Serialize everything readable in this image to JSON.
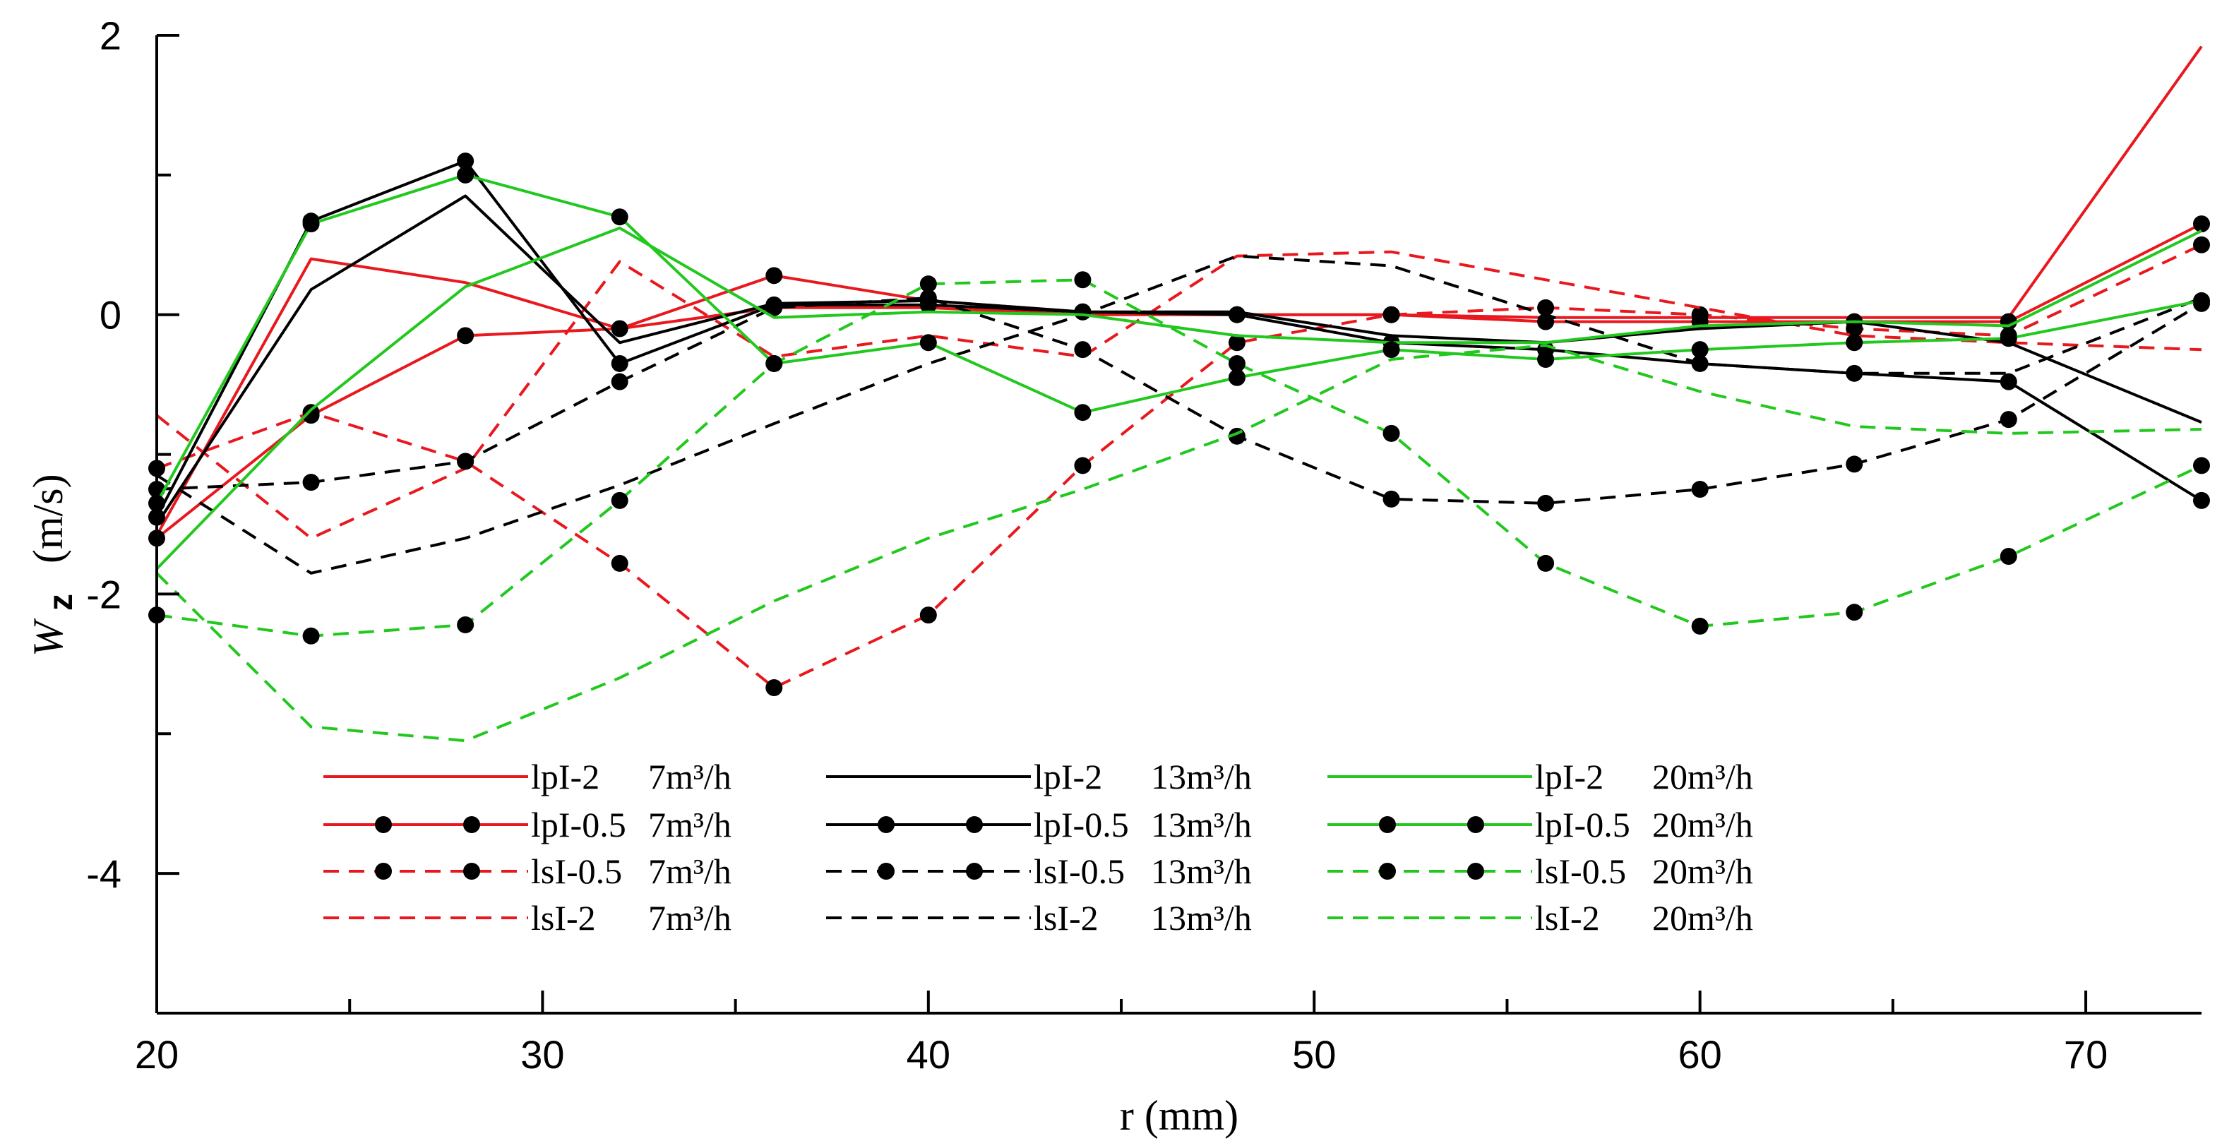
{
  "chart_data": {
    "type": "line",
    "title": "",
    "xlabel": "r  (mm)",
    "ylabel_symbol": "W",
    "ylabel_subscript": "z",
    "ylabel_unit": "(m/s)",
    "xlim": [
      20,
      73
    ],
    "ylim": [
      -5,
      2
    ],
    "x_ticks": [
      20,
      30,
      40,
      50,
      60,
      70
    ],
    "y_ticks": [
      -4,
      -2,
      0,
      2
    ],
    "x": [
      20,
      24,
      28,
      32,
      36,
      40,
      44,
      48,
      52,
      56,
      60,
      64,
      68,
      73
    ],
    "grid": false,
    "legend_position": "bottom-center",
    "colors": {
      "red": "#e8181e",
      "black": "#000000",
      "green": "#22c81e"
    },
    "series": [
      {
        "name": "lpI-2",
        "flow": "7m³/h",
        "color": "red",
        "dash": "solid",
        "markers": false,
        "values": [
          -1.58,
          0.4,
          0.23,
          -0.1,
          0.05,
          0.05,
          0.0,
          0.0,
          0.0,
          -0.02,
          -0.02,
          -0.02,
          -0.02,
          1.92
        ]
      },
      {
        "name": "lpI-0.5",
        "flow": "7m³/h",
        "color": "red",
        "dash": "solid",
        "markers": true,
        "values": [
          -1.6,
          -0.72,
          -0.15,
          -0.1,
          0.28,
          0.1,
          0.02,
          0.0,
          0.0,
          -0.05,
          -0.05,
          -0.05,
          -0.05,
          0.65
        ]
      },
      {
        "name": "lsI-0.5",
        "flow": "7m³/h",
        "color": "red",
        "dash": "dashed",
        "markers": true,
        "values": [
          -1.1,
          -0.7,
          -1.05,
          -1.78,
          -2.67,
          -2.15,
          -1.08,
          -0.2,
          0.0,
          0.05,
          0.0,
          -0.1,
          -0.15,
          0.5
        ]
      },
      {
        "name": "lsI-2",
        "flow": "7m³/h",
        "color": "red",
        "dash": "dashed",
        "markers": false,
        "values": [
          -0.72,
          -1.6,
          -1.1,
          0.38,
          -0.3,
          -0.15,
          -0.3,
          0.42,
          0.45,
          0.25,
          0.05,
          -0.15,
          -0.2,
          -0.25
        ]
      },
      {
        "name": "lpI-2",
        "flow": "13m³/h",
        "color": "black",
        "dash": "solid",
        "markers": false,
        "values": [
          -1.5,
          0.18,
          0.85,
          -0.2,
          0.08,
          0.1,
          0.02,
          0.02,
          -0.15,
          -0.2,
          -0.1,
          -0.05,
          -0.2,
          -0.77
        ]
      },
      {
        "name": "lpI-0.5",
        "flow": "13m³/h",
        "color": "black",
        "dash": "solid",
        "markers": true,
        "values": [
          -1.45,
          0.67,
          1.1,
          -0.35,
          0.07,
          0.07,
          0.02,
          0.0,
          -0.2,
          -0.25,
          -0.35,
          -0.42,
          -0.48,
          -1.33
        ]
      },
      {
        "name": "lsI-0.5",
        "flow": "13m³/h",
        "color": "black",
        "dash": "dashed",
        "markers": true,
        "values": [
          -1.25,
          -1.2,
          -1.05,
          -0.48,
          0.05,
          0.12,
          -0.25,
          -0.87,
          -1.32,
          -1.35,
          -1.25,
          -1.07,
          -0.75,
          0.08
        ]
      },
      {
        "name": "lsI-2",
        "flow": "13m³/h",
        "color": "black",
        "dash": "dashed",
        "markers": false,
        "values": [
          -1.15,
          -1.85,
          -1.6,
          -1.22,
          -0.78,
          -0.35,
          0.0,
          0.42,
          0.35,
          0.0,
          -0.35,
          -0.42,
          -0.42,
          0.12
        ]
      },
      {
        "name": "lpI-2",
        "flow": "20m³/h",
        "color": "green",
        "dash": "solid",
        "markers": false,
        "values": [
          -1.82,
          -0.68,
          0.2,
          0.62,
          -0.02,
          0.02,
          0.0,
          -0.15,
          -0.2,
          -0.2,
          -0.08,
          -0.05,
          -0.08,
          0.6
        ]
      },
      {
        "name": "lpI-0.5",
        "flow": "20m³/h",
        "color": "green",
        "dash": "solid",
        "markers": true,
        "values": [
          -1.35,
          0.65,
          1.0,
          0.7,
          -0.35,
          -0.2,
          -0.7,
          -0.45,
          -0.25,
          -0.32,
          -0.25,
          -0.2,
          -0.17,
          0.1
        ]
      },
      {
        "name": "lsI-0.5",
        "flow": "20m³/h",
        "color": "green",
        "dash": "dashed",
        "markers": true,
        "values": [
          -2.15,
          -2.3,
          -2.22,
          -1.33,
          -0.35,
          0.22,
          0.25,
          -0.35,
          -0.85,
          -1.78,
          -2.23,
          -2.13,
          -1.73,
          -1.08
        ]
      },
      {
        "name": "lsI-2",
        "flow": "20m³/h",
        "color": "green",
        "dash": "dashed",
        "markers": false,
        "values": [
          -1.85,
          -2.95,
          -3.05,
          -2.6,
          -2.05,
          -1.6,
          -1.25,
          -0.85,
          -0.32,
          -0.22,
          -0.55,
          -0.8,
          -0.85,
          -0.82
        ]
      }
    ],
    "legend": [
      {
        "series_index": 0,
        "name": "lpI-2",
        "flow": "7m³/h"
      },
      {
        "series_index": 1,
        "name": "lpI-0.5",
        "flow": "7m³/h"
      },
      {
        "series_index": 2,
        "name": "lsI-0.5",
        "flow": "7m³/h"
      },
      {
        "series_index": 3,
        "name": "lsI-2",
        "flow": "7m³/h"
      },
      {
        "series_index": 4,
        "name": "lpI-2",
        "flow": "13m³/h"
      },
      {
        "series_index": 5,
        "name": "lpI-0.5",
        "flow": "13m³/h"
      },
      {
        "series_index": 6,
        "name": "lsI-0.5",
        "flow": "13m³/h"
      },
      {
        "series_index": 7,
        "name": "lsI-2",
        "flow": "13m³/h"
      },
      {
        "series_index": 8,
        "name": "lpI-2",
        "flow": "20m³/h"
      },
      {
        "series_index": 9,
        "name": "lpI-0.5",
        "flow": "20m³/h"
      },
      {
        "series_index": 10,
        "name": "lsI-0.5",
        "flow": "20m³/h"
      },
      {
        "series_index": 11,
        "name": "lsI-2",
        "flow": "20m³/h"
      }
    ]
  }
}
